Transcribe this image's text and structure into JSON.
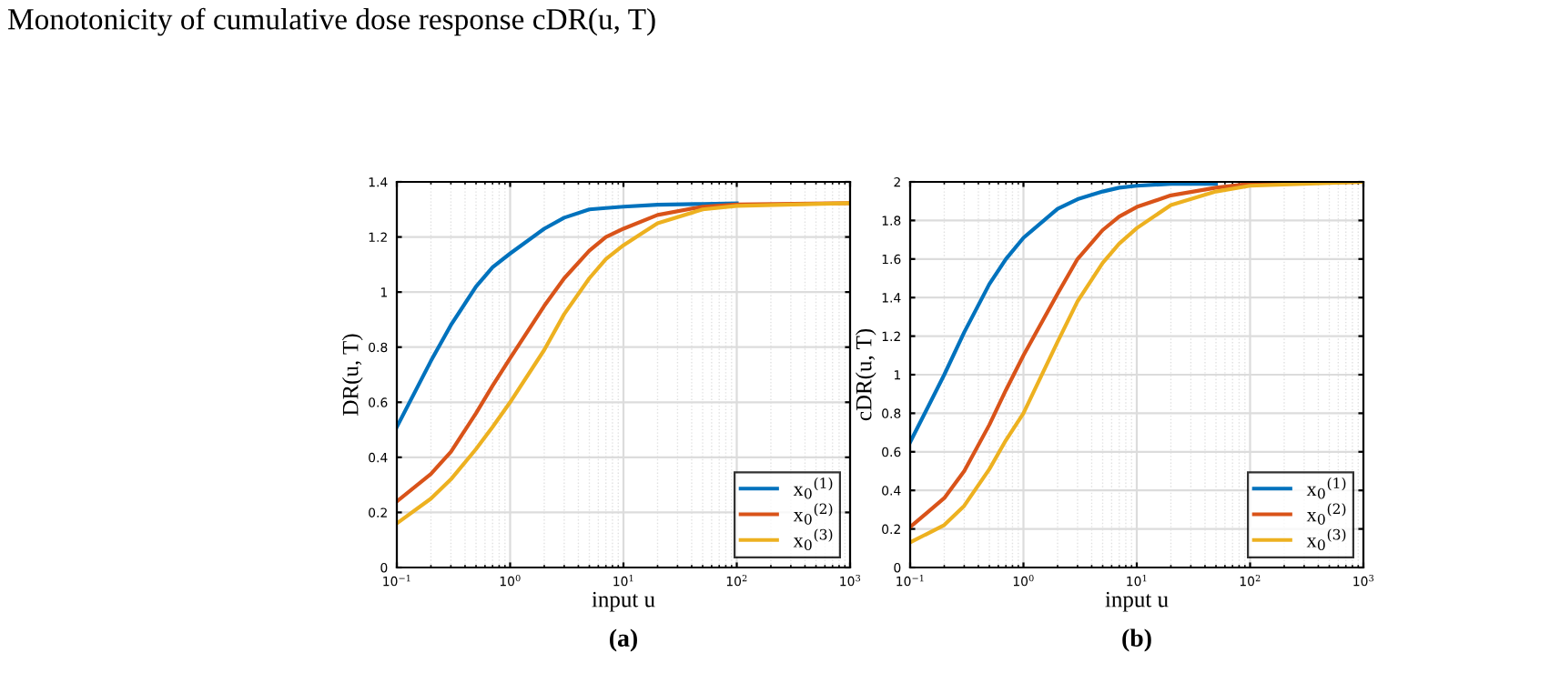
{
  "chart_data": [
    {
      "type": "line",
      "title": "Monotonicity of cumulative dose response cDR(u, T)",
      "xlabel": "input u",
      "ylabel": "DR(u, T)",
      "annotations": [
        "(a)"
      ],
      "x": [
        0.1,
        0.2,
        0.3,
        0.5,
        0.7,
        1,
        2,
        3,
        5,
        7,
        10,
        20,
        50,
        100,
        1000
      ],
      "series": [
        {
          "name": "x$_{0}$$^{(1)}$",
          "color": "#0072bd",
          "values": [
            0.51,
            0.75,
            0.88,
            1.02,
            1.09,
            1.14,
            1.23,
            1.27,
            1.3,
            1.305,
            1.31,
            1.317,
            1.32,
            1.322,
            null
          ]
        },
        {
          "name": "x$_{0}$$^{(2)}$",
          "color": "#d95319",
          "values": [
            0.24,
            0.34,
            0.42,
            0.56,
            0.66,
            0.76,
            0.95,
            1.05,
            1.15,
            1.2,
            1.23,
            1.28,
            1.31,
            1.318,
            1.323
          ]
        },
        {
          "name": "x$_{0}$$^{(3)}$",
          "color": "#edb120",
          "values": [
            0.16,
            0.25,
            0.32,
            0.43,
            0.51,
            0.6,
            0.79,
            0.92,
            1.05,
            1.12,
            1.17,
            1.25,
            1.3,
            1.313,
            1.323
          ]
        }
      ],
      "log": "x",
      "xlim": [
        0.1,
        1000
      ],
      "ylim": [
        0,
        1.4
      ],
      "xticks": [
        {
          "value": 0.1,
          "label": "10$^{−1}$"
        },
        {
          "value": 1,
          "label": "10$^{0}$"
        },
        {
          "value": 10,
          "label": "10$^{1}$"
        },
        {
          "value": 100,
          "label": "10$^{2}$"
        },
        {
          "value": 1000,
          "label": "10$^{3}$"
        }
      ],
      "yticks": [
        0,
        0.2,
        0.4,
        0.6,
        0.8,
        1,
        1.2,
        1.4
      ],
      "grid": true,
      "legend": "bottom right",
      "marker": "none",
      "line_style": "solid"
    },
    {
      "type": "line",
      "xlabel": "input u",
      "ylabel": "cDR(u, T)",
      "annotations": [
        "(b)"
      ],
      "x": [
        0.1,
        0.2,
        0.3,
        0.5,
        0.7,
        1,
        2,
        3,
        5,
        7,
        10,
        20,
        50,
        100,
        1000
      ],
      "series": [
        {
          "name": "x$_{0}$$^{(1)}$",
          "color": "#0072bd",
          "values": [
            0.65,
            1.0,
            1.22,
            1.47,
            1.6,
            1.71,
            1.86,
            1.91,
            1.95,
            1.97,
            1.98,
            1.99,
            1.99,
            null,
            null
          ]
        },
        {
          "name": "x$_{0}$$^{(2)}$",
          "color": "#d95319",
          "values": [
            0.21,
            0.36,
            0.5,
            0.74,
            0.92,
            1.1,
            1.42,
            1.6,
            1.75,
            1.82,
            1.87,
            1.93,
            1.97,
            1.99,
            2.0
          ]
        },
        {
          "name": "x$_{0}$$^{(3)}$",
          "color": "#edb120",
          "values": [
            0.13,
            0.22,
            0.32,
            0.51,
            0.66,
            0.8,
            1.17,
            1.38,
            1.58,
            1.68,
            1.76,
            1.88,
            1.95,
            1.98,
            2.0
          ]
        }
      ],
      "log": "x",
      "xlim": [
        0.1,
        1000
      ],
      "ylim": [
        0,
        2
      ],
      "xticks": [
        {
          "value": 0.1,
          "label": "10$^{−1}$"
        },
        {
          "value": 1,
          "label": "10$^{0}$"
        },
        {
          "value": 10,
          "label": "10$^{1}$"
        },
        {
          "value": 100,
          "label": "10$^{2}$"
        },
        {
          "value": 1000,
          "label": "10$^{3}$"
        }
      ],
      "yticks": [
        0,
        0.2,
        0.4,
        0.6,
        0.8,
        1,
        1.2,
        1.4,
        1.6,
        1.8,
        2
      ],
      "grid": true,
      "legend": "bottom right",
      "marker": "none",
      "line_style": "solid"
    }
  ]
}
